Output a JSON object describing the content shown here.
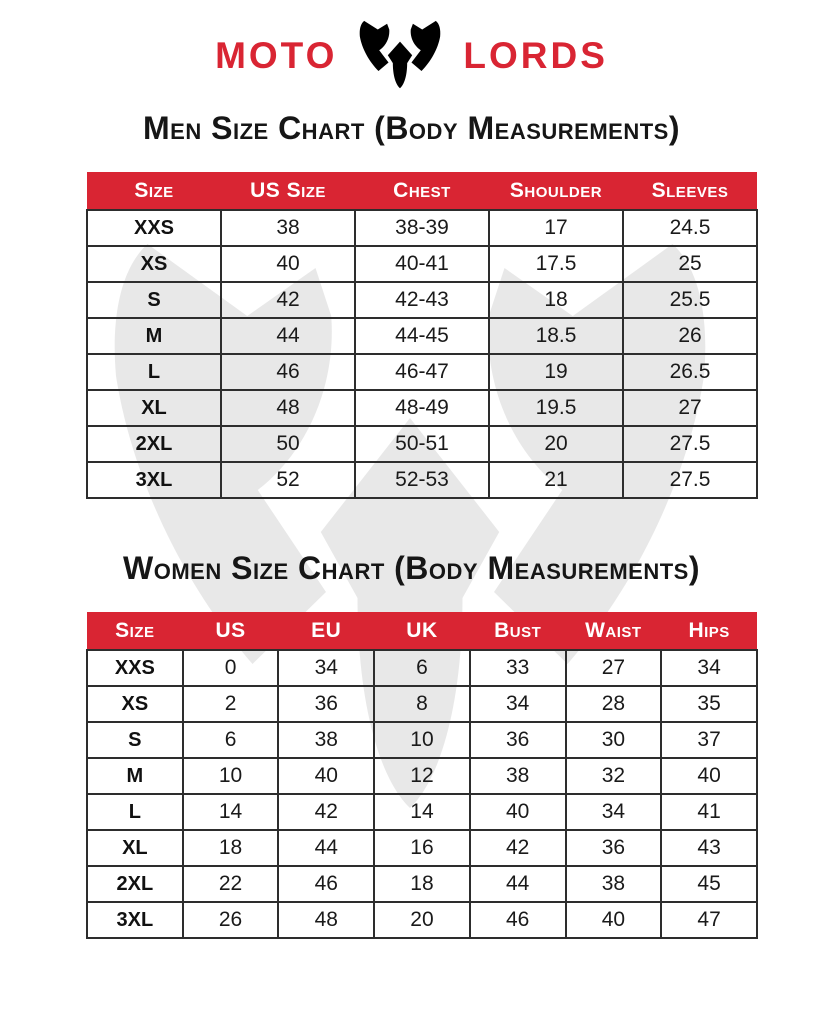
{
  "brand": {
    "name_left": "MOTO",
    "name_right": "LORDS",
    "logo_icon": "bull-helmet-icon"
  },
  "colors": {
    "accent_red": "#D92533",
    "header_text": "#FFFFFF",
    "body_text": "#1A1A1A",
    "table_border": "#2D2D2D",
    "watermark_pink": "#F8E6E7",
    "background": "#FFFFFF"
  },
  "men_chart": {
    "title": "Men Size Chart (Body Measurements)",
    "columns": [
      "Size",
      "US Size",
      "Chest",
      "Shoulder",
      "Sleeves"
    ],
    "rows": [
      [
        "XXS",
        "38",
        "38-39",
        "17",
        "24.5"
      ],
      [
        "XS",
        "40",
        "40-41",
        "17.5",
        "25"
      ],
      [
        "S",
        "42",
        "42-43",
        "18",
        "25.5"
      ],
      [
        "M",
        "44",
        "44-45",
        "18.5",
        "26"
      ],
      [
        "L",
        "46",
        "46-47",
        "19",
        "26.5"
      ],
      [
        "XL",
        "48",
        "48-49",
        "19.5",
        "27"
      ],
      [
        "2XL",
        "50",
        "50-51",
        "20",
        "27.5"
      ],
      [
        "3XL",
        "52",
        "52-53",
        "21",
        "27.5"
      ]
    ]
  },
  "women_chart": {
    "title": "Women Size Chart (Body Measurements)",
    "columns": [
      "Size",
      "US",
      "EU",
      "UK",
      "Bust",
      "Waist",
      "Hips"
    ],
    "rows": [
      [
        "XXS",
        "0",
        "34",
        "6",
        "33",
        "27",
        "34"
      ],
      [
        "XS",
        "2",
        "36",
        "8",
        "34",
        "28",
        "35"
      ],
      [
        "S",
        "6",
        "38",
        "10",
        "36",
        "30",
        "37"
      ],
      [
        "M",
        "10",
        "40",
        "12",
        "38",
        "32",
        "40"
      ],
      [
        "L",
        "14",
        "42",
        "14",
        "40",
        "34",
        "41"
      ],
      [
        "XL",
        "18",
        "44",
        "16",
        "42",
        "36",
        "43"
      ],
      [
        "2XL",
        "22",
        "46",
        "18",
        "44",
        "38",
        "45"
      ],
      [
        "3XL",
        "26",
        "48",
        "20",
        "46",
        "40",
        "47"
      ]
    ]
  }
}
